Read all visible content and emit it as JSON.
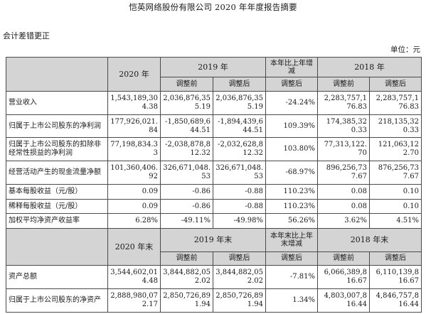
{
  "page_title": "恺英网络股份有限公司 2020 年年度报告摘要",
  "section_title": "会计差错更正",
  "unit_label": "单位：元",
  "header1": {
    "col_2020": "2020 年",
    "col_2019": "2019 年",
    "col_change": "本年比上年增减",
    "col_2018": "2018 年",
    "before": "调整前",
    "after": "调整后"
  },
  "rows1": [
    {
      "label": "营业收入",
      "v2020": "1,543,189,304.38",
      "b2019": "2,036,876,355.19",
      "a2019": "2,036,876,355.19",
      "chg": "-24.24%",
      "b2018": "2,283,757,176.83",
      "a2018": "2,283,757,176.83"
    },
    {
      "label": "归属于上市公司股东的净利润",
      "v2020": "177,926,021.84",
      "b2019": "-1,850,689,644.51",
      "a2019": "-1,894,439,644.51",
      "chg": "109.39%",
      "b2018": "174,385,320.33",
      "a2018": "218,135,320.33"
    },
    {
      "label": "归属于上市公司股东的扣除非经常性损益的净利润",
      "v2020": "77,198,834.33",
      "b2019": "-2,038,878,812.32",
      "a2019": "-2,032,628,812.32",
      "chg": "103.80%",
      "b2018": "77,313,122.70",
      "a2018": "121,063,122.70"
    },
    {
      "label": "经营活动产生的现金流量净额",
      "v2020": "101,360,406.92",
      "b2019": "326,671,048.53",
      "a2019": "326,671,048.53",
      "chg": "-68.97%",
      "b2018": "896,256,737.67",
      "a2018": "876,256,737.67"
    },
    {
      "label": "基本每股收益（元/股）",
      "v2020": "0.09",
      "b2019": "-0.86",
      "a2019": "-0.88",
      "chg": "110.23%",
      "b2018": "0.08",
      "a2018": "0.10"
    },
    {
      "label": "稀释每股收益（元/股）",
      "v2020": "0.09",
      "b2019": "-0.86",
      "a2019": "-0.88",
      "chg": "110.23%",
      "b2018": "0.08",
      "a2018": "0.10"
    },
    {
      "label": "加权平均净资产收益率",
      "v2020": "6.28%",
      "b2019": "-49.11%",
      "a2019": "-49.98%",
      "chg": "56.26%",
      "b2018": "3.62%",
      "a2018": "4.51%"
    }
  ],
  "header2": {
    "col_2020": "2020 年末",
    "col_2019": "2019 年末",
    "col_change": "本年末比上年末增减",
    "col_2018": "2018 年末",
    "before": "调整前",
    "after": "调整后"
  },
  "rows2": [
    {
      "label": "资产总额",
      "v2020": "3,544,602,014.48",
      "b2019": "3,844,882,052.02",
      "a2019": "3,844,882,052.02",
      "chg": "-7.81%",
      "b2018": "6,066,389,816.67",
      "a2018": "6,110,139,816.67"
    },
    {
      "label": "归属于上市公司股东的净资产",
      "v2020": "2,888,980,072.17",
      "b2019": "2,850,726,891.94",
      "a2019": "2,850,726,891.94",
      "chg": "1.34%",
      "b2018": "4,803,007,816.44",
      "a2018": "4,846,757,816.44"
    }
  ]
}
